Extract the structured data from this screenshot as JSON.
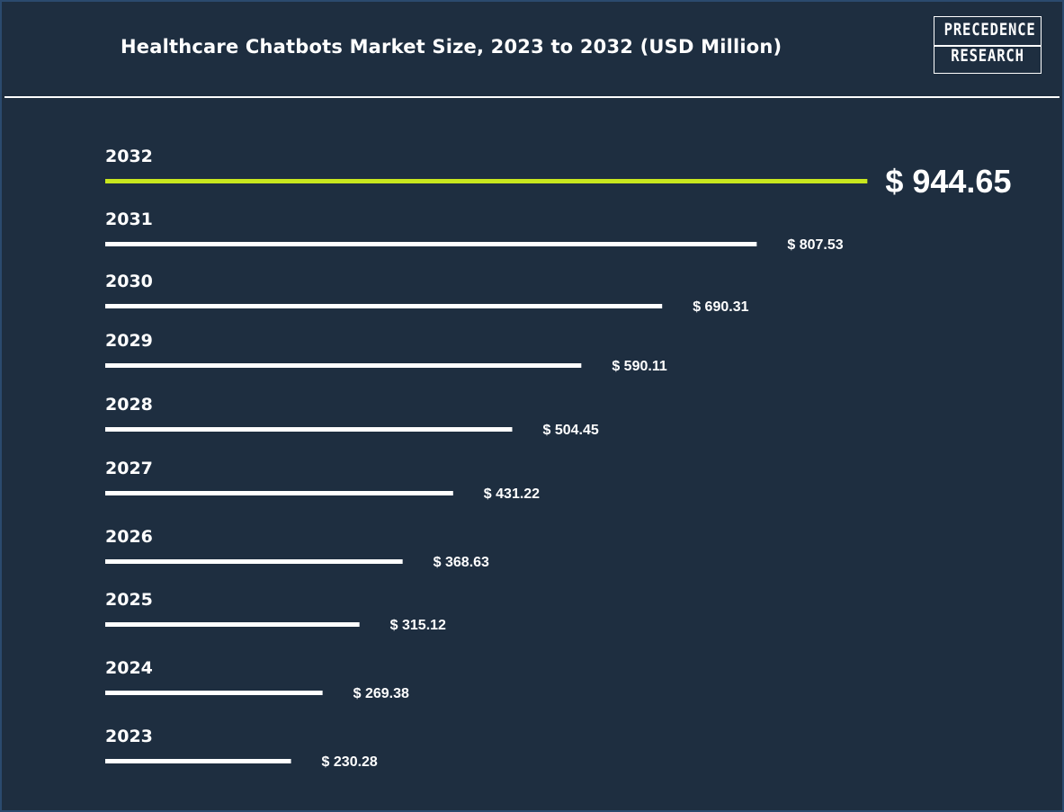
{
  "header": {
    "title": "Healthcare Chatbots Market Size, 2023 to 2032 (USD Million)",
    "logo_line1": "PRECEDENCE",
    "logo_line2": "RESEARCH"
  },
  "colors": {
    "background": "#1e2e40",
    "bar": "#ffffff",
    "highlight_bar": "#c8e61e",
    "text": "#ffffff"
  },
  "chart_data": {
    "type": "bar",
    "orientation": "horizontal",
    "title": "Healthcare Chatbots Market Size, 2023 to 2032 (USD Million)",
    "categories": [
      "2032",
      "2031",
      "2030",
      "2029",
      "2028",
      "2027",
      "2026",
      "2025",
      "2024",
      "2023"
    ],
    "values": [
      944.65,
      807.53,
      690.31,
      590.11,
      504.45,
      431.22,
      368.63,
      315.12,
      269.38,
      230.28
    ],
    "value_labels": [
      "$ 944.65",
      "$ 807.53",
      "$ 690.31",
      "$ 590.11",
      "$ 504.45",
      "$ 431.22",
      "$ 368.63",
      "$ 315.12",
      "$ 269.38",
      "$ 230.28"
    ],
    "highlight_category": "2032",
    "xlabel": "",
    "ylabel": "",
    "grid": false,
    "legend": "none"
  }
}
